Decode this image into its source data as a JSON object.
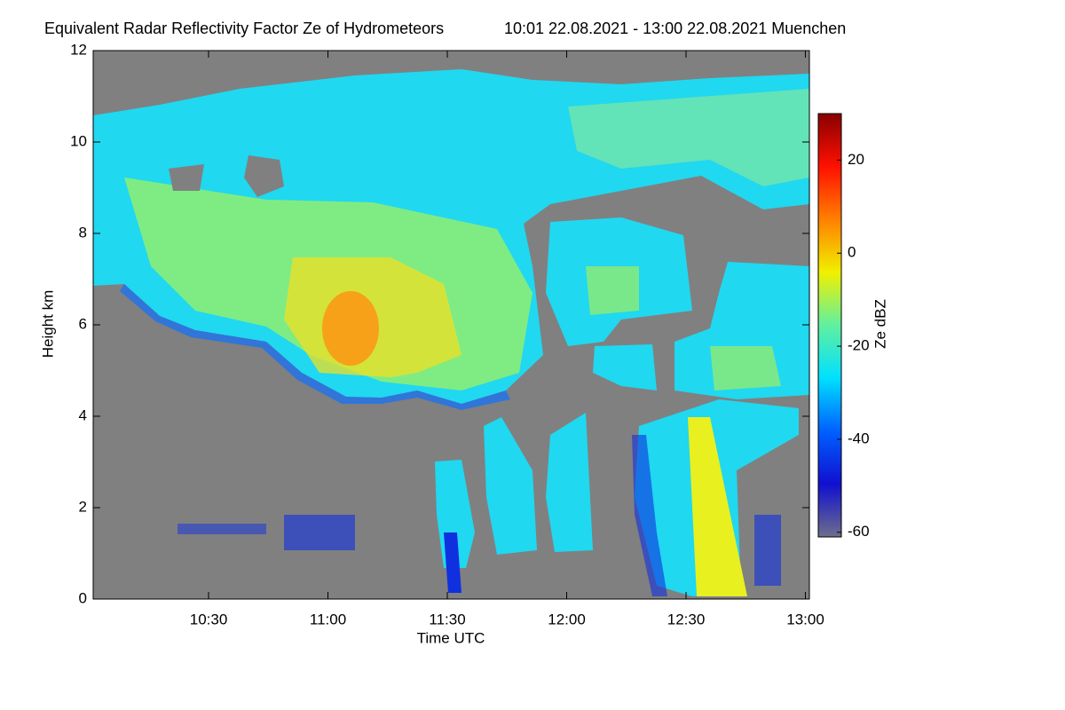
{
  "chart_data": {
    "type": "heatmap",
    "title": "Equivalent Radar Reflectivity Factor Ze of Hydrometeors",
    "subtitle": "10:01 22.08.2021 - 13:00 22.08.2021 Muenchen",
    "xlabel": "Time UTC",
    "ylabel": "Height km",
    "colorbar_label": "Ze dBZ",
    "xlim": [
      601,
      781
    ],
    "xticks": [
      {
        "value": 630,
        "label": "10:30"
      },
      {
        "value": 660,
        "label": "11:00"
      },
      {
        "value": 690,
        "label": "11:30"
      },
      {
        "value": 720,
        "label": "12:00"
      },
      {
        "value": 750,
        "label": "12:30"
      },
      {
        "value": 780,
        "label": "13:00"
      }
    ],
    "ylim": [
      0,
      12
    ],
    "yticks": [
      0,
      2,
      4,
      6,
      8,
      10,
      12
    ],
    "clim": [
      -61,
      30
    ],
    "cticks": [
      -60,
      -40,
      -20,
      0,
      20
    ],
    "colormap": [
      "#6e6e8c",
      "#1010d0",
      "#0060ff",
      "#00e0ff",
      "#60f0a0",
      "#f0f000",
      "#ff8000",
      "#ff1000",
      "#880000"
    ],
    "background": "#808080",
    "grid": false
  }
}
